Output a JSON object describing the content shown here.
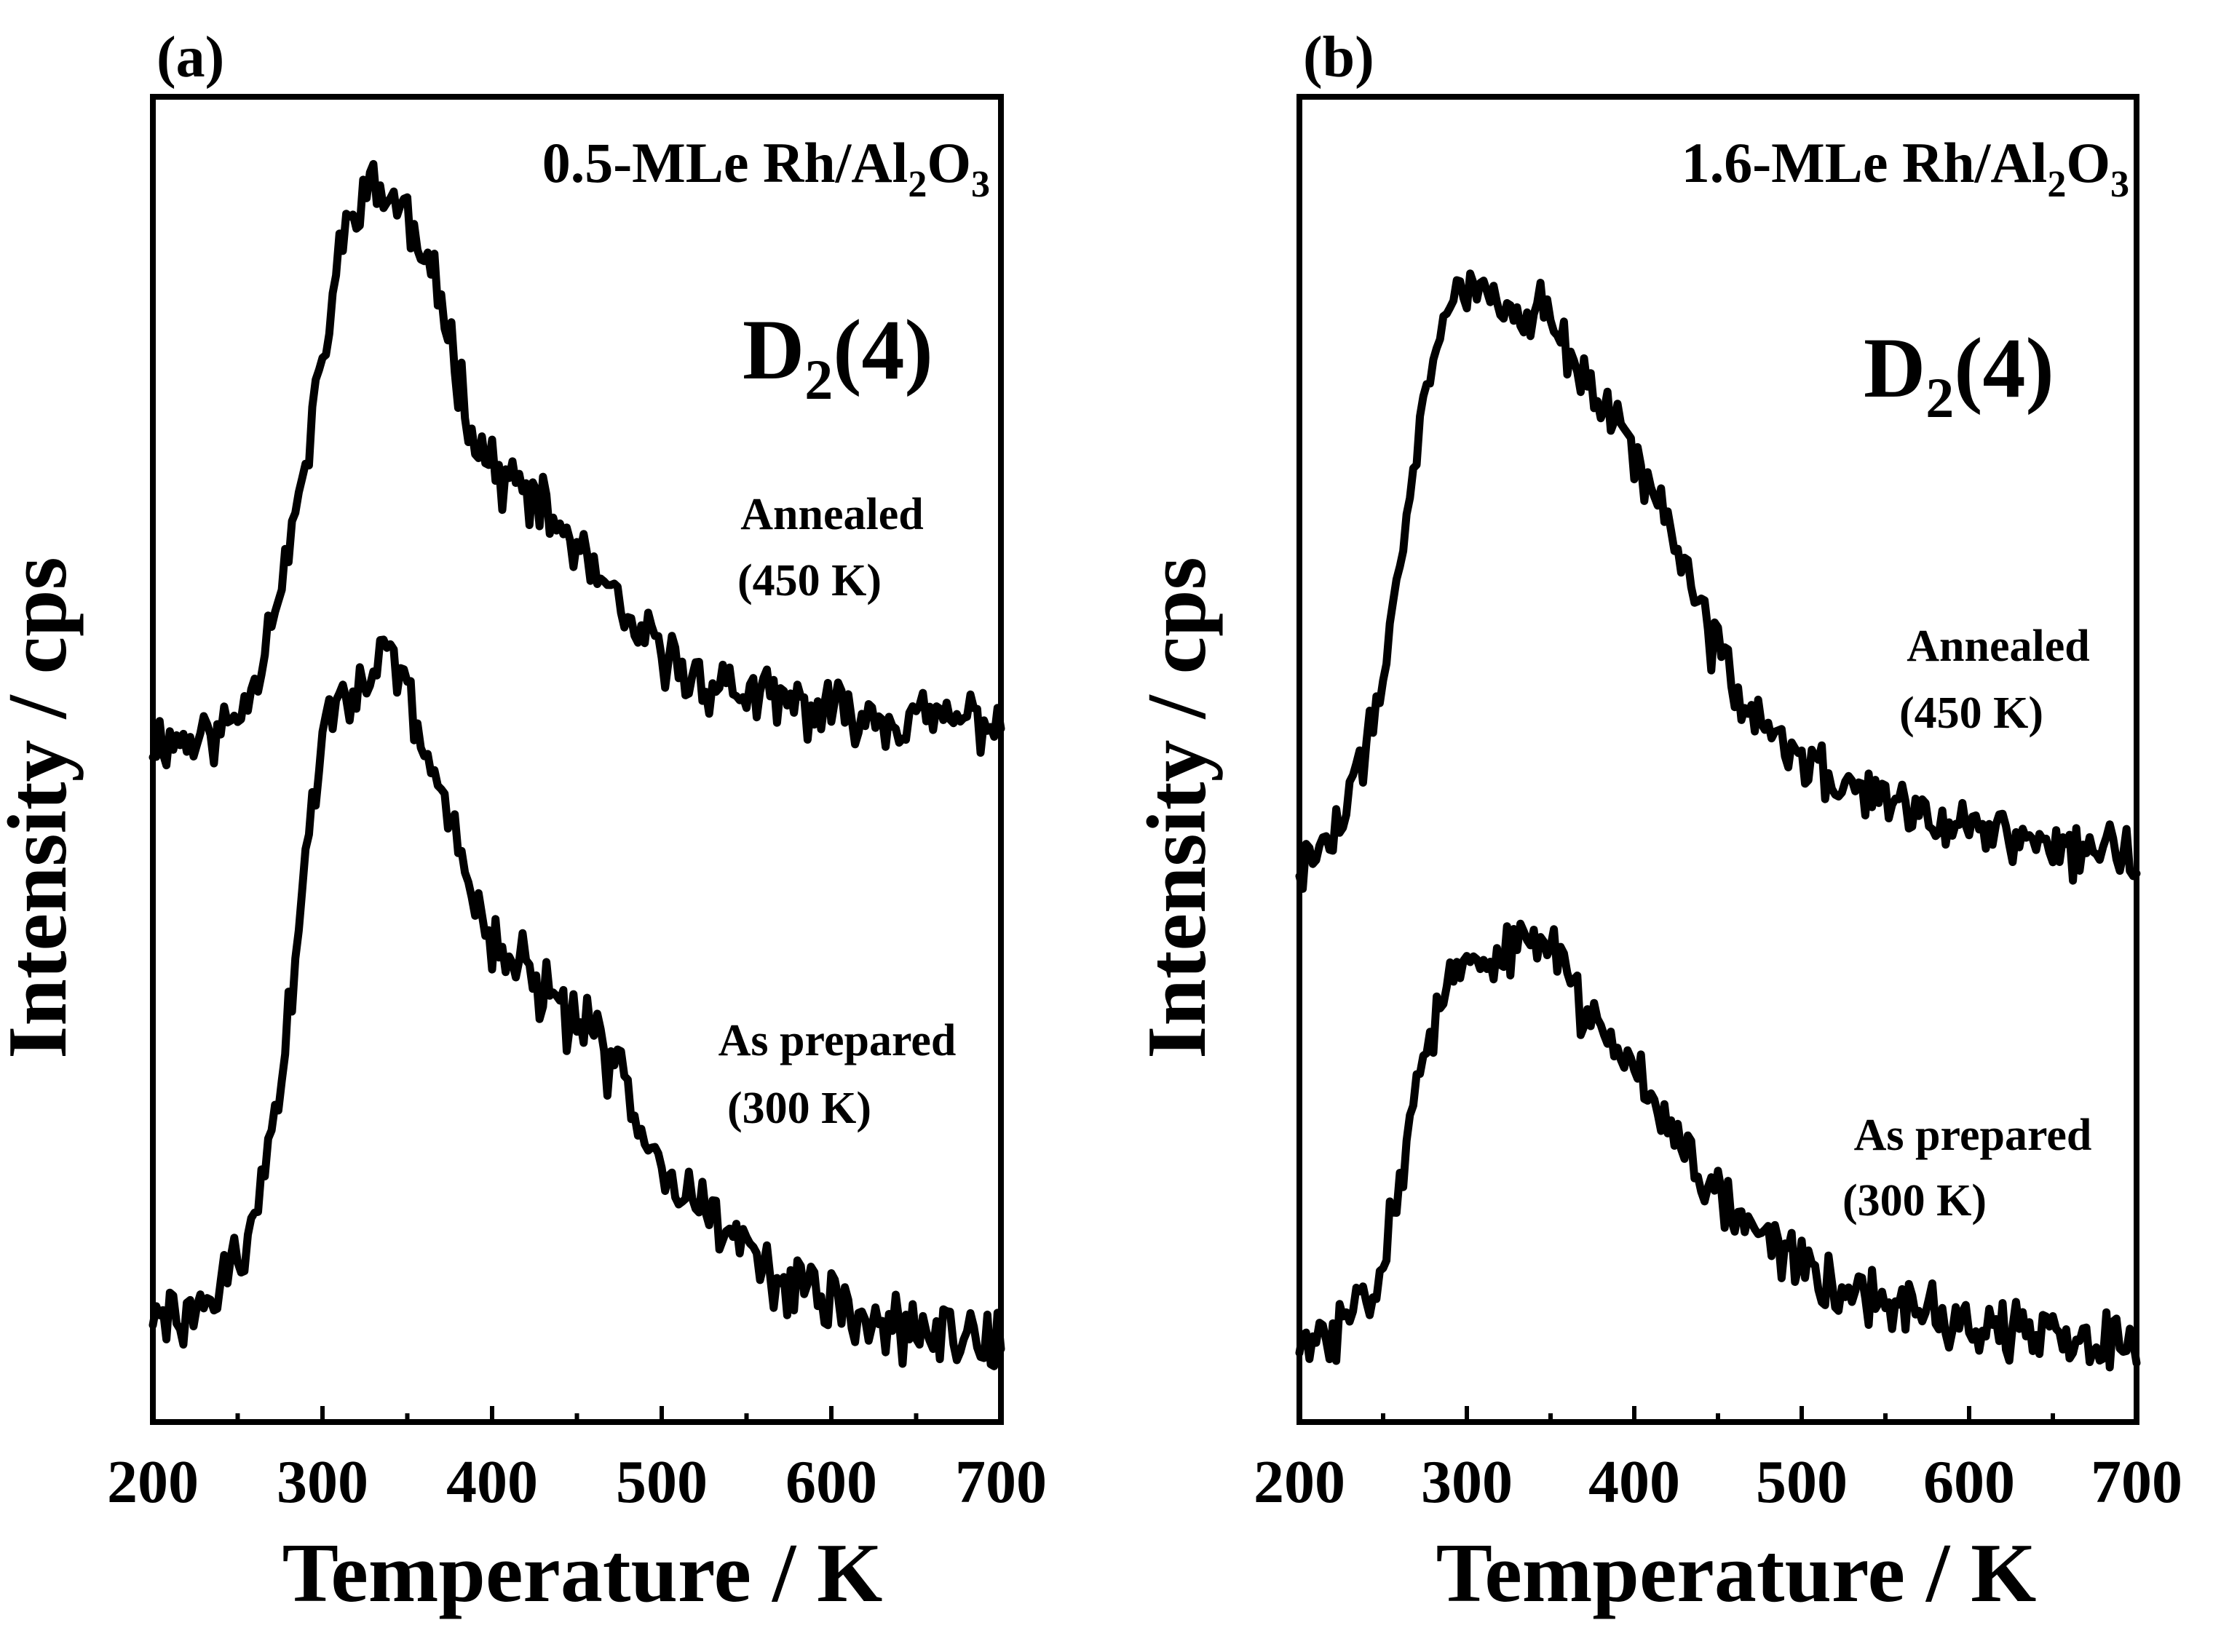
{
  "chart_data": [
    {
      "type": "line",
      "panel": "(a)",
      "sample": {
        "main": "0.5-MLe Rh/Al",
        "sub1": "2",
        "mid": "O",
        "sub2": "3"
      },
      "species": {
        "main": "D",
        "sub": "2",
        "tail": "(4)"
      },
      "xlabel": "Temperature / K",
      "ylabel": "Intensity / cps",
      "xlim": [
        200,
        700
      ],
      "ylim": [
        0,
        1
      ],
      "xticks": [
        "200",
        "300",
        "400",
        "500",
        "600",
        "700"
      ],
      "yticks": [],
      "grid": false,
      "series": [
        {
          "name": "Annealed (450 K)",
          "label_lines": [
            "Annealed",
            "(450 K)"
          ],
          "noise": 0.018,
          "seed": 11,
          "x": [
            200,
            220,
            240,
            250,
            260,
            270,
            280,
            290,
            300,
            310,
            320,
            330,
            340,
            350,
            360,
            370,
            380,
            390,
            400,
            420,
            440,
            460,
            480,
            500,
            520,
            540,
            560,
            580,
            600,
            620,
            640,
            660,
            680,
            700
          ],
          "values": [
            0.515,
            0.515,
            0.52,
            0.535,
            0.56,
            0.61,
            0.66,
            0.72,
            0.8,
            0.88,
            0.925,
            0.93,
            0.925,
            0.91,
            0.87,
            0.85,
            0.79,
            0.745,
            0.72,
            0.7,
            0.675,
            0.64,
            0.6,
            0.58,
            0.56,
            0.555,
            0.545,
            0.54,
            0.535,
            0.535,
            0.53,
            0.53,
            0.53,
            0.53
          ]
        },
        {
          "name": "As prepared (300 K)",
          "label_lines": [
            "As prepared",
            "(300 K)"
          ],
          "noise": 0.02,
          "seed": 29,
          "x": [
            200,
            220,
            240,
            250,
            260,
            270,
            280,
            290,
            300,
            310,
            320,
            330,
            340,
            350,
            360,
            370,
            380,
            390,
            400,
            420,
            440,
            460,
            480,
            500,
            520,
            540,
            560,
            580,
            600,
            620,
            640,
            660,
            680,
            700
          ],
          "values": [
            0.075,
            0.08,
            0.1,
            0.12,
            0.15,
            0.22,
            0.3,
            0.42,
            0.52,
            0.55,
            0.56,
            0.565,
            0.57,
            0.55,
            0.5,
            0.47,
            0.44,
            0.4,
            0.36,
            0.34,
            0.31,
            0.29,
            0.25,
            0.2,
            0.17,
            0.14,
            0.12,
            0.1,
            0.09,
            0.075,
            0.07,
            0.065,
            0.065,
            0.065
          ]
        }
      ]
    },
    {
      "type": "line",
      "panel": "(b)",
      "sample": {
        "main": "1.6-MLe Rh/Al",
        "sub1": "2",
        "mid": "O",
        "sub2": "3"
      },
      "species": {
        "main": "D",
        "sub": "2",
        "tail": "(4)"
      },
      "xlabel": "Temperature / K",
      "ylabel": "Intensity / cps",
      "xlim": [
        200,
        700
      ],
      "ylim": [
        0,
        1
      ],
      "xticks": [
        "200",
        "300",
        "400",
        "500",
        "600",
        "700"
      ],
      "yticks": [],
      "grid": false,
      "series": [
        {
          "name": "Annealed (450 K)",
          "label_lines": [
            "Annealed",
            "(450 K)"
          ],
          "noise": 0.018,
          "seed": 47,
          "x": [
            200,
            220,
            240,
            250,
            260,
            270,
            280,
            290,
            300,
            310,
            320,
            330,
            340,
            350,
            360,
            380,
            400,
            420,
            440,
            460,
            480,
            500,
            520,
            540,
            560,
            580,
            600,
            620,
            640,
            660,
            680,
            700
          ],
          "values": [
            0.42,
            0.44,
            0.5,
            0.57,
            0.65,
            0.73,
            0.8,
            0.84,
            0.86,
            0.86,
            0.85,
            0.84,
            0.84,
            0.83,
            0.81,
            0.77,
            0.73,
            0.68,
            0.61,
            0.55,
            0.52,
            0.5,
            0.485,
            0.475,
            0.465,
            0.455,
            0.45,
            0.445,
            0.44,
            0.435,
            0.43,
            0.425
          ]
        },
        {
          "name": "As prepared (300 K)",
          "label_lines": [
            "As prepared",
            "(300 K)"
          ],
          "noise": 0.018,
          "seed": 83,
          "x": [
            200,
            220,
            240,
            250,
            260,
            270,
            280,
            290,
            300,
            320,
            340,
            350,
            360,
            370,
            380,
            400,
            420,
            440,
            460,
            480,
            500,
            520,
            540,
            560,
            580,
            600,
            620,
            640,
            660,
            680,
            700
          ],
          "values": [
            0.055,
            0.065,
            0.1,
            0.13,
            0.18,
            0.25,
            0.3,
            0.33,
            0.34,
            0.35,
            0.36,
            0.37,
            0.33,
            0.31,
            0.3,
            0.27,
            0.23,
            0.19,
            0.16,
            0.14,
            0.12,
            0.105,
            0.095,
            0.085,
            0.08,
            0.075,
            0.07,
            0.065,
            0.06,
            0.06,
            0.06
          ]
        }
      ]
    }
  ]
}
